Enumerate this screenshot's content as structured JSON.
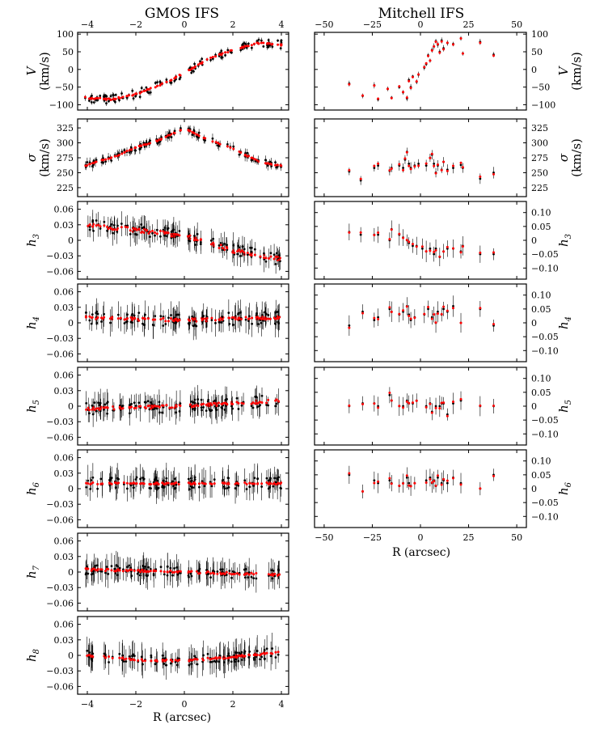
{
  "figure": {
    "left_title": "GMOS IFS",
    "right_title": "Mitchell IFS",
    "xlabel": "R (arcsec)",
    "colors": {
      "data": "#000000",
      "model": "#ff0000",
      "axis": "#000000"
    }
  },
  "chart_data": [
    {
      "id": "gmos_V",
      "instrument": "GMOS IFS",
      "type": "scatter",
      "ylabel": "V",
      "yunit": "(km/s)",
      "xlim": [
        -4.4,
        4.3
      ],
      "ylim": [
        -115,
        105
      ],
      "yticks": [
        -100,
        -50,
        0,
        50,
        100
      ],
      "xticks": [
        -4,
        -2,
        0,
        2,
        4
      ],
      "trend": {
        "kind": "linear",
        "x": [
          -4.1,
          -3.0,
          -2.0,
          -1.0,
          0.0,
          1.0,
          2.0,
          3.0,
          3.8
        ],
        "y": [
          -80,
          -85,
          -70,
          -45,
          -10,
          30,
          55,
          75,
          70
        ]
      },
      "scatter": 12,
      "err": 6,
      "n": 120,
      "model_offset": 2
    },
    {
      "id": "gmos_sigma",
      "instrument": "GMOS IFS",
      "type": "scatter",
      "ylabel": "σ",
      "yunit": "(km/s)",
      "xlim": [
        -4.4,
        4.3
      ],
      "ylim": [
        210,
        340
      ],
      "yticks": [
        225,
        250,
        275,
        300,
        325
      ],
      "xticks": [
        -4,
        -2,
        0,
        2,
        4
      ],
      "trend": {
        "kind": "linear",
        "x": [
          -4.1,
          -3.0,
          -2.0,
          -1.0,
          0.0,
          0.2,
          1.0,
          2.0,
          3.0,
          3.8
        ],
        "y": [
          262,
          275,
          292,
          305,
          325,
          320,
          305,
          290,
          270,
          262
        ]
      },
      "scatter": 5,
      "err": 6,
      "n": 120,
      "model_offset": 1
    },
    {
      "id": "gmos_h3",
      "instrument": "GMOS IFS",
      "type": "scatter",
      "ylabel": "h3",
      "yunit": "",
      "xlim": [
        -4.4,
        4.3
      ],
      "ylim": [
        -0.075,
        0.075
      ],
      "yticks": [
        -0.06,
        -0.03,
        0,
        0.03,
        0.06
      ],
      "yticklabels": [
        "−0.06",
        "−0.03",
        "0",
        "0.03",
        "0.06"
      ],
      "xticks": [
        -4,
        -2,
        0,
        2,
        4
      ],
      "trend": {
        "kind": "linear",
        "x": [
          -4.1,
          -2.0,
          -0.3,
          0.3,
          2.0,
          3.8
        ],
        "y": [
          0.03,
          0.02,
          0.01,
          0.005,
          -0.02,
          -0.035
        ]
      },
      "scatter": 0.012,
      "err": 0.018,
      "n": 120,
      "model_offset": 0.004
    },
    {
      "id": "gmos_h4",
      "instrument": "GMOS IFS",
      "type": "scatter",
      "ylabel": "h4",
      "yunit": "",
      "xlim": [
        -4.4,
        4.3
      ],
      "ylim": [
        -0.075,
        0.075
      ],
      "yticks": [
        -0.06,
        -0.03,
        0,
        0.03,
        0.06
      ],
      "yticklabels": [
        "−0.06",
        "−0.03",
        "0",
        "0.03",
        "0.06"
      ],
      "xticks": [
        -4,
        -2,
        0,
        2,
        4
      ],
      "trend": {
        "kind": "linear",
        "x": [
          -4.1,
          0,
          3.8
        ],
        "y": [
          0.01,
          0.005,
          0.01
        ]
      },
      "scatter": 0.012,
      "err": 0.02,
      "n": 120,
      "model_offset": 0.003
    },
    {
      "id": "gmos_h5",
      "instrument": "GMOS IFS",
      "type": "scatter",
      "ylabel": "h5",
      "yunit": "",
      "xlim": [
        -4.4,
        4.3
      ],
      "ylim": [
        -0.075,
        0.075
      ],
      "yticks": [
        -0.06,
        -0.03,
        0,
        0.03,
        0.06
      ],
      "yticklabels": [
        "−0.06",
        "−0.03",
        "0",
        "0.03",
        "0.06"
      ],
      "xticks": [
        -4,
        -2,
        0,
        2,
        4
      ],
      "trend": {
        "kind": "linear",
        "x": [
          -4.1,
          0,
          3.8
        ],
        "y": [
          -0.005,
          0,
          0.01
        ]
      },
      "scatter": 0.012,
      "err": 0.02,
      "n": 120,
      "model_offset": 0.003
    },
    {
      "id": "gmos_h6",
      "instrument": "GMOS IFS",
      "type": "scatter",
      "ylabel": "h6",
      "yunit": "",
      "xlim": [
        -4.4,
        4.3
      ],
      "ylim": [
        -0.075,
        0.075
      ],
      "yticks": [
        -0.06,
        -0.03,
        0,
        0.03,
        0.06
      ],
      "yticklabels": [
        "−0.06",
        "−0.03",
        "0",
        "0.03",
        "0.06"
      ],
      "xticks": [
        -4,
        -2,
        0,
        2,
        4
      ],
      "trend": {
        "kind": "linear",
        "x": [
          -4.1,
          0,
          3.8
        ],
        "y": [
          0.01,
          0.01,
          0.01
        ]
      },
      "scatter": 0.012,
      "err": 0.022,
      "n": 120,
      "model_offset": 0.002
    },
    {
      "id": "gmos_h7",
      "instrument": "GMOS IFS",
      "type": "scatter",
      "ylabel": "h7",
      "yunit": "",
      "xlim": [
        -4.4,
        4.3
      ],
      "ylim": [
        -0.075,
        0.075
      ],
      "yticks": [
        -0.06,
        -0.03,
        0,
        0.03,
        0.06
      ],
      "yticklabels": [
        "−0.06",
        "−0.03",
        "0",
        "0.03",
        "0.06"
      ],
      "xticks": [
        -4,
        -2,
        0,
        2,
        4
      ],
      "trend": {
        "kind": "linear",
        "x": [
          -4.1,
          0,
          3.8
        ],
        "y": [
          0.005,
          0.0,
          -0.005
        ]
      },
      "scatter": 0.01,
      "err": 0.02,
      "n": 120,
      "model_offset": 0.002
    },
    {
      "id": "gmos_h8",
      "instrument": "GMOS IFS",
      "type": "scatter",
      "ylabel": "h8",
      "yunit": "",
      "xlim": [
        -4.4,
        4.3
      ],
      "ylim": [
        -0.075,
        0.075
      ],
      "yticks": [
        -0.06,
        -0.03,
        0,
        0.03,
        0.06
      ],
      "yticklabels": [
        "−0.06",
        "−0.03",
        "0",
        "0.03",
        "0.06"
      ],
      "xticks": [
        -4,
        -2,
        0,
        2,
        4
      ],
      "trend": {
        "kind": "linear",
        "x": [
          -4.1,
          -1.5,
          0,
          1.5,
          3.8
        ],
        "y": [
          0.0,
          -0.01,
          -0.01,
          -0.005,
          0.005
        ]
      },
      "scatter": 0.01,
      "err": 0.022,
      "n": 120,
      "model_offset": 0.002
    },
    {
      "id": "mitchell_V",
      "instrument": "Mitchell IFS",
      "type": "scatter",
      "ylabel": "V",
      "yunit": "(km/s)",
      "xlim": [
        -55,
        55
      ],
      "ylim": [
        -115,
        105
      ],
      "yticks": [
        -100,
        -50,
        0,
        50,
        100
      ],
      "xticks": [
        -50,
        -25,
        0,
        25,
        50
      ],
      "points": [
        [
          -37,
          -40
        ],
        [
          -30,
          -75
        ],
        [
          -24,
          -45
        ],
        [
          -22,
          -85
        ],
        [
          -17,
          -55
        ],
        [
          -15,
          -80
        ],
        [
          -11,
          -50
        ],
        [
          -9,
          -65
        ],
        [
          -7,
          -82
        ],
        [
          -6,
          -30
        ],
        [
          -5,
          -50
        ],
        [
          -4,
          -20
        ],
        [
          -2,
          -35
        ],
        [
          -1,
          -15
        ],
        [
          2,
          5
        ],
        [
          3,
          15
        ],
        [
          4,
          40
        ],
        [
          5,
          25
        ],
        [
          6,
          55
        ],
        [
          7,
          65
        ],
        [
          8,
          80
        ],
        [
          9,
          70
        ],
        [
          10,
          50
        ],
        [
          11,
          82
        ],
        [
          12,
          60
        ],
        [
          14,
          75
        ],
        [
          17,
          72
        ],
        [
          21,
          88
        ],
        [
          22,
          45
        ],
        [
          31,
          78
        ],
        [
          38,
          42
        ]
      ],
      "err": 7,
      "model_offset": 3
    },
    {
      "id": "mitchell_sigma",
      "instrument": "Mitchell IFS",
      "type": "scatter",
      "ylabel": "σ",
      "yunit": "(km/s)",
      "xlim": [
        -55,
        55
      ],
      "ylim": [
        210,
        340
      ],
      "yticks": [
        225,
        250,
        275,
        300,
        325
      ],
      "xticks": [
        -50,
        -25,
        0,
        25,
        50
      ],
      "points": [
        [
          -37,
          252
        ],
        [
          -31,
          237
        ],
        [
          -24,
          258
        ],
        [
          -22,
          262
        ],
        [
          -16,
          253
        ],
        [
          -15,
          258
        ],
        [
          -11,
          262
        ],
        [
          -9,
          258
        ],
        [
          -8,
          272
        ],
        [
          -7,
          285
        ],
        [
          -6,
          265
        ],
        [
          -5,
          258
        ],
        [
          -3,
          262
        ],
        [
          -1,
          265
        ],
        [
          3,
          262
        ],
        [
          5,
          275
        ],
        [
          6,
          280
        ],
        [
          7,
          265
        ],
        [
          8,
          250
        ],
        [
          9,
          262
        ],
        [
          11,
          255
        ],
        [
          12,
          268
        ],
        [
          14,
          255
        ],
        [
          17,
          258
        ],
        [
          21,
          263
        ],
        [
          22,
          258
        ],
        [
          31,
          240
        ],
        [
          38,
          250
        ]
      ],
      "err": 8,
      "model_offset": 4
    },
    {
      "id": "mitchell_h3",
      "instrument": "Mitchell IFS",
      "type": "scatter",
      "ylabel": "h3",
      "yunit": "",
      "xlim": [
        -55,
        55
      ],
      "ylim": [
        -0.14,
        0.14
      ],
      "yticks": [
        -0.1,
        -0.05,
        0,
        0.05,
        0.1
      ],
      "yticklabels": [
        "−0.10",
        "−0.05",
        "0",
        "0.05",
        "0.10"
      ],
      "xticks": [
        -50,
        -25,
        0,
        25,
        50
      ],
      "points": [
        [
          -37,
          0.03
        ],
        [
          -31,
          0.02
        ],
        [
          -24,
          0.02
        ],
        [
          -22,
          0.02
        ],
        [
          -16,
          0.0
        ],
        [
          -15,
          0.04
        ],
        [
          -11,
          0.02
        ],
        [
          -9,
          0.01
        ],
        [
          -7,
          0.0
        ],
        [
          -6,
          -0.01
        ],
        [
          -4,
          -0.02
        ],
        [
          -2,
          -0.02
        ],
        [
          1,
          -0.03
        ],
        [
          3,
          -0.04
        ],
        [
          5,
          -0.03
        ],
        [
          7,
          -0.05
        ],
        [
          8,
          -0.03
        ],
        [
          10,
          -0.06
        ],
        [
          12,
          -0.04
        ],
        [
          14,
          -0.03
        ],
        [
          17,
          -0.03
        ],
        [
          21,
          -0.04
        ],
        [
          22,
          -0.02
        ],
        [
          31,
          -0.05
        ],
        [
          38,
          -0.05
        ]
      ],
      "err": 0.03,
      "model_offset": 0.008
    },
    {
      "id": "mitchell_h4",
      "instrument": "Mitchell IFS",
      "type": "scatter",
      "ylabel": "h4",
      "yunit": "",
      "xlim": [
        -55,
        55
      ],
      "ylim": [
        -0.14,
        0.14
      ],
      "yticks": [
        -0.1,
        -0.05,
        0,
        0.05,
        0.1
      ],
      "yticklabels": [
        "−0.10",
        "−0.05",
        "0",
        "0.05",
        "0.10"
      ],
      "xticks": [
        -50,
        -25,
        0,
        25,
        50
      ],
      "points": [
        [
          -37,
          -0.01
        ],
        [
          -30,
          0.04
        ],
        [
          -24,
          0.01
        ],
        [
          -22,
          0.02
        ],
        [
          -16,
          0.05
        ],
        [
          -15,
          0.04
        ],
        [
          -11,
          0.03
        ],
        [
          -9,
          0.04
        ],
        [
          -7,
          0.06
        ],
        [
          -6,
          0.03
        ],
        [
          -5,
          0.01
        ],
        [
          -3,
          0.02
        ],
        [
          2,
          0.03
        ],
        [
          4,
          0.05
        ],
        [
          6,
          0.02
        ],
        [
          7,
          0.03
        ],
        [
          8,
          0.0
        ],
        [
          9,
          0.04
        ],
        [
          11,
          0.03
        ],
        [
          12,
          0.05
        ],
        [
          14,
          0.04
        ],
        [
          17,
          0.06
        ],
        [
          21,
          0.0
        ],
        [
          31,
          0.05
        ],
        [
          38,
          -0.01
        ]
      ],
      "err": 0.03,
      "model_offset": 0.008
    },
    {
      "id": "mitchell_h5",
      "instrument": "Mitchell IFS",
      "type": "scatter",
      "ylabel": "h5",
      "yunit": "",
      "xlim": [
        -55,
        55
      ],
      "ylim": [
        -0.14,
        0.14
      ],
      "yticks": [
        -0.1,
        -0.05,
        0,
        0.05,
        0.1
      ],
      "yticklabels": [
        "−0.10",
        "−0.05",
        "0",
        "0.05",
        "0.10"
      ],
      "xticks": [
        -50,
        -25,
        0,
        25,
        50
      ],
      "points": [
        [
          -37,
          0.0
        ],
        [
          -30,
          0.01
        ],
        [
          -24,
          0.01
        ],
        [
          -22,
          0.0
        ],
        [
          -16,
          0.04
        ],
        [
          -15,
          0.02
        ],
        [
          -11,
          0.0
        ],
        [
          -9,
          0.0
        ],
        [
          -7,
          0.02
        ],
        [
          -6,
          0.01
        ],
        [
          -4,
          0.01
        ],
        [
          -2,
          0.02
        ],
        [
          3,
          0.0
        ],
        [
          5,
          0.01
        ],
        [
          6,
          -0.02
        ],
        [
          8,
          0.0
        ],
        [
          10,
          0.0
        ],
        [
          11,
          0.01
        ],
        [
          12,
          0.01
        ],
        [
          14,
          -0.03
        ],
        [
          17,
          0.01
        ],
        [
          21,
          0.02
        ],
        [
          31,
          0.0
        ],
        [
          38,
          0.0
        ]
      ],
      "err": 0.03,
      "model_offset": 0.008
    },
    {
      "id": "mitchell_h6",
      "instrument": "Mitchell IFS",
      "type": "scatter",
      "ylabel": "h6",
      "yunit": "",
      "xlim": [
        -55,
        55
      ],
      "ylim": [
        -0.14,
        0.14
      ],
      "yticks": [
        -0.1,
        -0.05,
        0,
        0.05,
        0.1
      ],
      "yticklabels": [
        "−0.10",
        "−0.05",
        "0",
        "0.05",
        "0.10"
      ],
      "xticks": [
        -50,
        -25,
        0,
        25,
        50
      ],
      "points": [
        [
          -37,
          0.05
        ],
        [
          -30,
          -0.01
        ],
        [
          -24,
          0.03
        ],
        [
          -22,
          0.02
        ],
        [
          -16,
          0.03
        ],
        [
          -15,
          0.02
        ],
        [
          -11,
          0.01
        ],
        [
          -9,
          0.02
        ],
        [
          -7,
          0.04
        ],
        [
          -6,
          0.02
        ],
        [
          -5,
          0.01
        ],
        [
          -3,
          0.02
        ],
        [
          3,
          0.03
        ],
        [
          5,
          0.04
        ],
        [
          6,
          0.02
        ],
        [
          7,
          0.03
        ],
        [
          8,
          0.01
        ],
        [
          9,
          0.04
        ],
        [
          11,
          0.02
        ],
        [
          12,
          0.03
        ],
        [
          14,
          0.02
        ],
        [
          17,
          0.04
        ],
        [
          21,
          0.02
        ],
        [
          31,
          0.0
        ],
        [
          38,
          0.05
        ]
      ],
      "err": 0.03,
      "model_offset": -0.01
    }
  ]
}
